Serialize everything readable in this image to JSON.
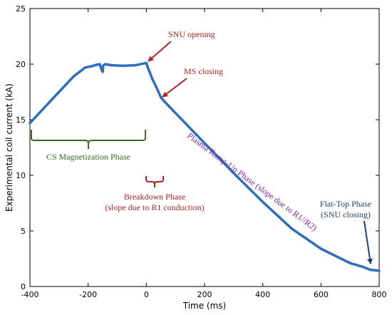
{
  "colors": {
    "series": "#2e6dbf",
    "annotation_red": "#b22222",
    "annotation_green": "#3a6b1f",
    "annotation_purple": "#7b2a9b",
    "annotation_navy": "#1f3e7a"
  },
  "chart_data": {
    "type": "line",
    "xlabel": "Time (ms)",
    "ylabel": "Experimental coil current (kA)",
    "xlim": [
      -400,
      800
    ],
    "ylim": [
      0,
      25
    ],
    "xticks": [
      -400,
      -200,
      0,
      200,
      400,
      600,
      800
    ],
    "yticks": [
      0,
      5,
      10,
      15,
      20,
      25
    ],
    "grid": false,
    "series": [
      {
        "x": [
          -400,
          -350,
          -300,
          -250,
          -210,
          -190,
          -170,
          -160,
          -155,
          -150,
          -148,
          -140,
          -120,
          -80,
          -40,
          -10,
          0,
          5,
          20,
          40,
          50,
          60,
          100,
          200,
          300,
          400,
          500,
          600,
          700,
          740,
          760,
          770,
          790,
          800
        ],
        "y": [
          14.7,
          16.1,
          17.5,
          18.9,
          19.7,
          19.8,
          19.95,
          20.0,
          19.6,
          19.3,
          19.9,
          20.0,
          19.9,
          19.85,
          19.9,
          20.05,
          20.1,
          19.7,
          18.7,
          17.6,
          17.0,
          16.7,
          15.6,
          12.9,
          10.2,
          7.6,
          5.2,
          3.4,
          2.1,
          1.8,
          1.6,
          1.5,
          1.45,
          1.4
        ]
      }
    ],
    "annotations": [
      {
        "text": "SNU opening",
        "color": "red"
      },
      {
        "text": "MS closing",
        "color": "red"
      },
      {
        "text": "CS Magnetization Phase",
        "color": "green"
      },
      {
        "text": "Breakdown Phase",
        "color": "red"
      },
      {
        "text": "(slope due to R1 conduction)",
        "color": "red"
      },
      {
        "text": "Plasma Ramp-Up Phase (slope due to R1//R2)",
        "color": "purple"
      },
      {
        "text": "Flat-Top Phase",
        "color": "navy"
      },
      {
        "text": "(SNU closing)",
        "color": "navy"
      }
    ]
  }
}
